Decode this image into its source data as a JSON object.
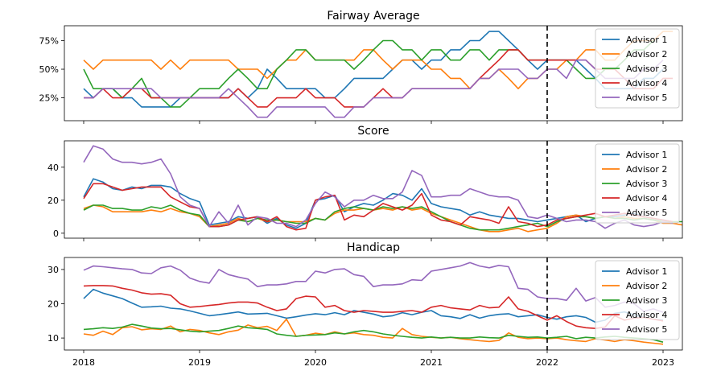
{
  "chart_data": [
    {
      "type": "line",
      "title": "Fairway Average",
      "xlabel": "",
      "ylabel": "",
      "x_start": "2018-01",
      "x_step": "month",
      "xlim": [
        "2017-11",
        "2023-03"
      ],
      "ylim": [
        5,
        88
      ],
      "y_ticks": [
        25,
        50,
        75
      ],
      "y_tick_labels": [
        "25%",
        "50%",
        "75%"
      ],
      "x_ticks": [
        "2018",
        "2019",
        "2020",
        "2021",
        "2022",
        "2023"
      ],
      "vline": "2022-01",
      "legend_position": "right",
      "series": [
        {
          "name": "Advisor 1",
          "color": "#1f77b4",
          "values": [
            33,
            25,
            33,
            33,
            25,
            25,
            17,
            17,
            17,
            17,
            25,
            25,
            25,
            25,
            25,
            25,
            33,
            25,
            33,
            50,
            42,
            33,
            33,
            33,
            33,
            25,
            25,
            33,
            42,
            42,
            42,
            42,
            50,
            58,
            58,
            50,
            58,
            58,
            67,
            67,
            75,
            75,
            83,
            83,
            75,
            67,
            58,
            50,
            58,
            58,
            58,
            58,
            50,
            42,
            33,
            33,
            33,
            33,
            42,
            42,
            50
          ]
        },
        {
          "name": "Advisor 2",
          "color": "#ff7f0e",
          "values": [
            58,
            50,
            58,
            58,
            58,
            58,
            58,
            58,
            50,
            58,
            50,
            58,
            58,
            58,
            58,
            58,
            50,
            50,
            50,
            42,
            50,
            58,
            58,
            67,
            58,
            58,
            58,
            58,
            58,
            67,
            67,
            58,
            50,
            58,
            58,
            58,
            50,
            50,
            42,
            42,
            33,
            42,
            42,
            50,
            42,
            33,
            42,
            42,
            50,
            50,
            58,
            58,
            67,
            67,
            58,
            58,
            67,
            75,
            75,
            75,
            83,
            83
          ]
        },
        {
          "name": "Advisor 3",
          "color": "#2ca02c",
          "values": [
            50,
            33,
            33,
            33,
            25,
            33,
            42,
            25,
            25,
            17,
            17,
            25,
            33,
            33,
            33,
            42,
            50,
            42,
            33,
            33,
            50,
            58,
            67,
            67,
            58,
            58,
            58,
            58,
            50,
            58,
            67,
            75,
            75,
            67,
            67,
            58,
            67,
            67,
            58,
            58,
            67,
            67,
            58,
            67,
            67,
            67,
            58,
            58,
            58,
            58,
            58,
            50,
            42,
            42,
            50,
            50,
            58,
            67,
            67,
            75
          ]
        },
        {
          "name": "Advisor 4",
          "color": "#d62728",
          "values": [
            25,
            25,
            33,
            25,
            25,
            33,
            33,
            25,
            25,
            25,
            25,
            25,
            25,
            25,
            25,
            25,
            33,
            25,
            17,
            17,
            25,
            25,
            25,
            33,
            25,
            25,
            25,
            17,
            17,
            17,
            25,
            33,
            25,
            25,
            33,
            33,
            33,
            33,
            33,
            33,
            33,
            42,
            50,
            58,
            67,
            67,
            58,
            58,
            58,
            58,
            58,
            58,
            58,
            50,
            50,
            50,
            42,
            33,
            33,
            33,
            42,
            42
          ]
        },
        {
          "name": "Advisor 5",
          "color": "#9467bd",
          "values": [
            25,
            25,
            33,
            33,
            33,
            33,
            33,
            33,
            25,
            25,
            25,
            25,
            25,
            25,
            25,
            33,
            25,
            17,
            8,
            8,
            17,
            17,
            17,
            17,
            17,
            17,
            8,
            8,
            17,
            17,
            25,
            25,
            25,
            25,
            33,
            33,
            33,
            33,
            33,
            33,
            33,
            42,
            42,
            50,
            50,
            50,
            42,
            42,
            50,
            50,
            42,
            58,
            58,
            50,
            42,
            42,
            42,
            42,
            50,
            50,
            58
          ]
        }
      ]
    },
    {
      "type": "line",
      "title": "Score",
      "xlabel": "",
      "ylabel": "",
      "x_start": "2018-01",
      "x_step": "month",
      "xlim": [
        "2017-11",
        "2023-03"
      ],
      "ylim": [
        -3,
        56
      ],
      "y_ticks": [
        0,
        20,
        40
      ],
      "y_tick_labels": [
        "0",
        "20",
        "40"
      ],
      "x_ticks": [
        "2018",
        "2019",
        "2020",
        "2021",
        "2022",
        "2023"
      ],
      "vline": "2022-01",
      "legend_position": "right",
      "series": [
        {
          "name": "Advisor 1",
          "color": "#1f77b4",
          "values": [
            22,
            33,
            31,
            27,
            26,
            28,
            27,
            29,
            29,
            28,
            24,
            21,
            19,
            5,
            6,
            7,
            10,
            9,
            10,
            6,
            9,
            5,
            3,
            6,
            20,
            21,
            23,
            13,
            16,
            18,
            17,
            20,
            24,
            23,
            20,
            27,
            18,
            16,
            15,
            14,
            11,
            13,
            11,
            10,
            9,
            9,
            8,
            7,
            8,
            9,
            10,
            11,
            7,
            9,
            10,
            10,
            11,
            12,
            10,
            9,
            8,
            7
          ]
        },
        {
          "name": "Advisor 2",
          "color": "#ff7f0e",
          "values": [
            15,
            17,
            16,
            13,
            13,
            13,
            13,
            14,
            13,
            15,
            13,
            12,
            10,
            4,
            5,
            6,
            9,
            7,
            9,
            7,
            8,
            7,
            7,
            7,
            9,
            8,
            12,
            14,
            14,
            15,
            14,
            15,
            14,
            16,
            14,
            15,
            12,
            10,
            8,
            6,
            4,
            2,
            1,
            1,
            2,
            3,
            1,
            2,
            3,
            6,
            10,
            11,
            10,
            9,
            10,
            9,
            10,
            9,
            9,
            8,
            6,
            6,
            5
          ]
        },
        {
          "name": "Advisor 3",
          "color": "#2ca02c",
          "values": [
            14,
            17,
            17,
            15,
            15,
            14,
            14,
            16,
            15,
            17,
            14,
            12,
            11,
            4,
            4,
            5,
            8,
            7,
            9,
            8,
            8,
            7,
            6,
            6,
            9,
            8,
            13,
            15,
            16,
            15,
            14,
            16,
            15,
            16,
            15,
            16,
            13,
            10,
            7,
            5,
            3,
            2,
            2,
            2,
            3,
            4,
            5,
            6,
            4,
            7,
            9,
            10,
            10,
            9,
            10,
            9,
            9,
            8,
            9,
            8,
            7,
            7,
            7
          ]
        },
        {
          "name": "Advisor 4",
          "color": "#d62728",
          "values": [
            21,
            30,
            30,
            28,
            26,
            27,
            28,
            28,
            28,
            22,
            19,
            16,
            15,
            4,
            4,
            5,
            8,
            9,
            10,
            7,
            10,
            4,
            2,
            3,
            20,
            22,
            23,
            8,
            11,
            10,
            14,
            18,
            16,
            14,
            17,
            24,
            11,
            8,
            7,
            5,
            10,
            9,
            8,
            6,
            16,
            7,
            6,
            4,
            5,
            8,
            9,
            10,
            11,
            12,
            10,
            11,
            12,
            11,
            10,
            9,
            8,
            7
          ]
        },
        {
          "name": "Advisor 5",
          "color": "#9467bd",
          "values": [
            43,
            53,
            51,
            45,
            43,
            43,
            42,
            43,
            45,
            36,
            22,
            17,
            15,
            4,
            13,
            6,
            17,
            5,
            10,
            9,
            6,
            6,
            4,
            8,
            18,
            25,
            22,
            16,
            20,
            20,
            23,
            21,
            21,
            25,
            38,
            35,
            22,
            22,
            23,
            23,
            27,
            25,
            23,
            22,
            22,
            20,
            10,
            9,
            11,
            9,
            7,
            8,
            8,
            7,
            3,
            6,
            8,
            5,
            4,
            5,
            7,
            6
          ]
        }
      ]
    },
    {
      "type": "line",
      "title": "Handicap",
      "xlabel": "",
      "ylabel": "",
      "x_start": "2018-01",
      "x_step": "month",
      "xlim": [
        "2017-11",
        "2023-03"
      ],
      "ylim": [
        6.5,
        33.5
      ],
      "y_ticks": [
        10,
        20,
        30
      ],
      "y_tick_labels": [
        "10",
        "20",
        "30"
      ],
      "x_ticks": [
        "2018",
        "2019",
        "2020",
        "2021",
        "2022",
        "2023"
      ],
      "vline": "2022-01",
      "legend_position": "right",
      "series": [
        {
          "name": "Advisor 1",
          "color": "#1f77b4",
          "values": [
            21.5,
            24.2,
            23.1,
            22.3,
            21.5,
            20.2,
            19.0,
            19.1,
            19.3,
            18.7,
            18.5,
            17.9,
            17.2,
            16.5,
            16.8,
            17.2,
            17.6,
            17.0,
            17.1,
            17.2,
            16.5,
            15.8,
            16.2,
            16.7,
            17.1,
            16.8,
            17.4,
            16.8,
            18.0,
            17.5,
            17.0,
            16.2,
            16.5,
            17.4,
            16.8,
            17.5,
            18.0,
            16.5,
            16.2,
            15.7,
            16.8,
            15.8,
            16.5,
            16.9,
            17.1,
            16.2,
            16.5,
            16.8,
            16.0,
            15.5,
            16.2,
            16.5,
            16.0,
            14.6,
            15.2,
            17.2,
            17.6,
            16.8,
            16.0,
            15.5,
            15.2
          ]
        },
        {
          "name": "Advisor 2",
          "color": "#ff7f0e",
          "values": [
            11.2,
            10.8,
            12.0,
            11.0,
            13.0,
            13.3,
            12.4,
            12.7,
            12.5,
            13.5,
            11.8,
            12.5,
            12.2,
            11.5,
            11.0,
            11.8,
            12.3,
            13.8,
            13.0,
            13.4,
            12.2,
            15.5,
            10.5,
            10.8,
            11.4,
            11.0,
            11.8,
            11.2,
            11.5,
            11.0,
            10.8,
            10.2,
            10.0,
            12.8,
            11.0,
            10.5,
            10.2,
            10.0,
            10.2,
            9.8,
            9.5,
            9.2,
            9.0,
            9.3,
            11.5,
            10.2,
            9.8,
            10.0,
            9.8,
            10.0,
            9.5,
            9.2,
            9.0,
            9.8,
            9.4,
            9.0,
            9.5,
            9.2,
            8.8,
            8.5,
            8.2
          ]
        },
        {
          "name": "Advisor 3",
          "color": "#2ca02c",
          "values": [
            12.5,
            12.7,
            13.0,
            12.8,
            13.2,
            14.0,
            13.5,
            12.9,
            12.7,
            12.8,
            12.4,
            12.0,
            11.8,
            12.0,
            12.2,
            12.8,
            13.5,
            13.0,
            12.8,
            12.5,
            11.2,
            10.8,
            10.5,
            10.8,
            10.9,
            11.0,
            11.5,
            11.2,
            11.8,
            12.2,
            11.8,
            11.2,
            10.8,
            10.5,
            10.2,
            10.0,
            10.3,
            10.0,
            10.2,
            10.0,
            10.0,
            10.3,
            10.1,
            10.0,
            10.8,
            10.5,
            10.2,
            10.3,
            10.0,
            10.2,
            10.5,
            9.8,
            10.2,
            10.0,
            10.3,
            10.5,
            10.2,
            10.0,
            9.8,
            9.5,
            8.8
          ]
        },
        {
          "name": "Advisor 4",
          "color": "#d62728",
          "values": [
            25.2,
            25.3,
            25.3,
            25.2,
            24.5,
            24.0,
            23.2,
            22.8,
            22.9,
            22.5,
            20.0,
            19.0,
            19.2,
            19.5,
            19.8,
            20.2,
            20.5,
            20.5,
            20.2,
            19.0,
            18.0,
            18.5,
            21.5,
            22.2,
            22.0,
            19.0,
            19.5,
            18.0,
            17.5,
            18.0,
            17.8,
            17.5,
            17.5,
            17.8,
            18.0,
            17.5,
            19.0,
            19.5,
            18.8,
            18.5,
            18.2,
            19.5,
            18.8,
            19.0,
            22.0,
            18.5,
            17.8,
            16.5,
            15.2,
            16.5,
            14.8,
            13.5,
            13.0,
            12.8,
            13.2,
            16.5,
            15.2,
            15.8,
            16.0,
            15.5,
            15.0
          ]
        },
        {
          "name": "Advisor 5",
          "color": "#9467bd",
          "values": [
            29.8,
            31.0,
            30.8,
            30.5,
            30.2,
            30.0,
            29.0,
            28.8,
            30.5,
            31.0,
            29.8,
            27.5,
            26.5,
            26.0,
            30.0,
            28.5,
            27.8,
            27.2,
            25.0,
            25.5,
            25.5,
            25.8,
            26.5,
            26.5,
            29.5,
            29.0,
            30.0,
            30.2,
            28.5,
            28.0,
            25.0,
            25.5,
            25.5,
            25.8,
            27.0,
            26.8,
            29.5,
            30.0,
            30.5,
            31.0,
            32.0,
            31.0,
            30.5,
            31.2,
            30.8,
            24.5,
            24.2,
            22.0,
            21.5,
            21.5,
            21.0,
            24.5,
            20.8,
            21.8,
            19.0,
            19.5,
            20.5,
            20.0,
            17.8,
            18.5,
            17.5
          ]
        }
      ]
    }
  ]
}
